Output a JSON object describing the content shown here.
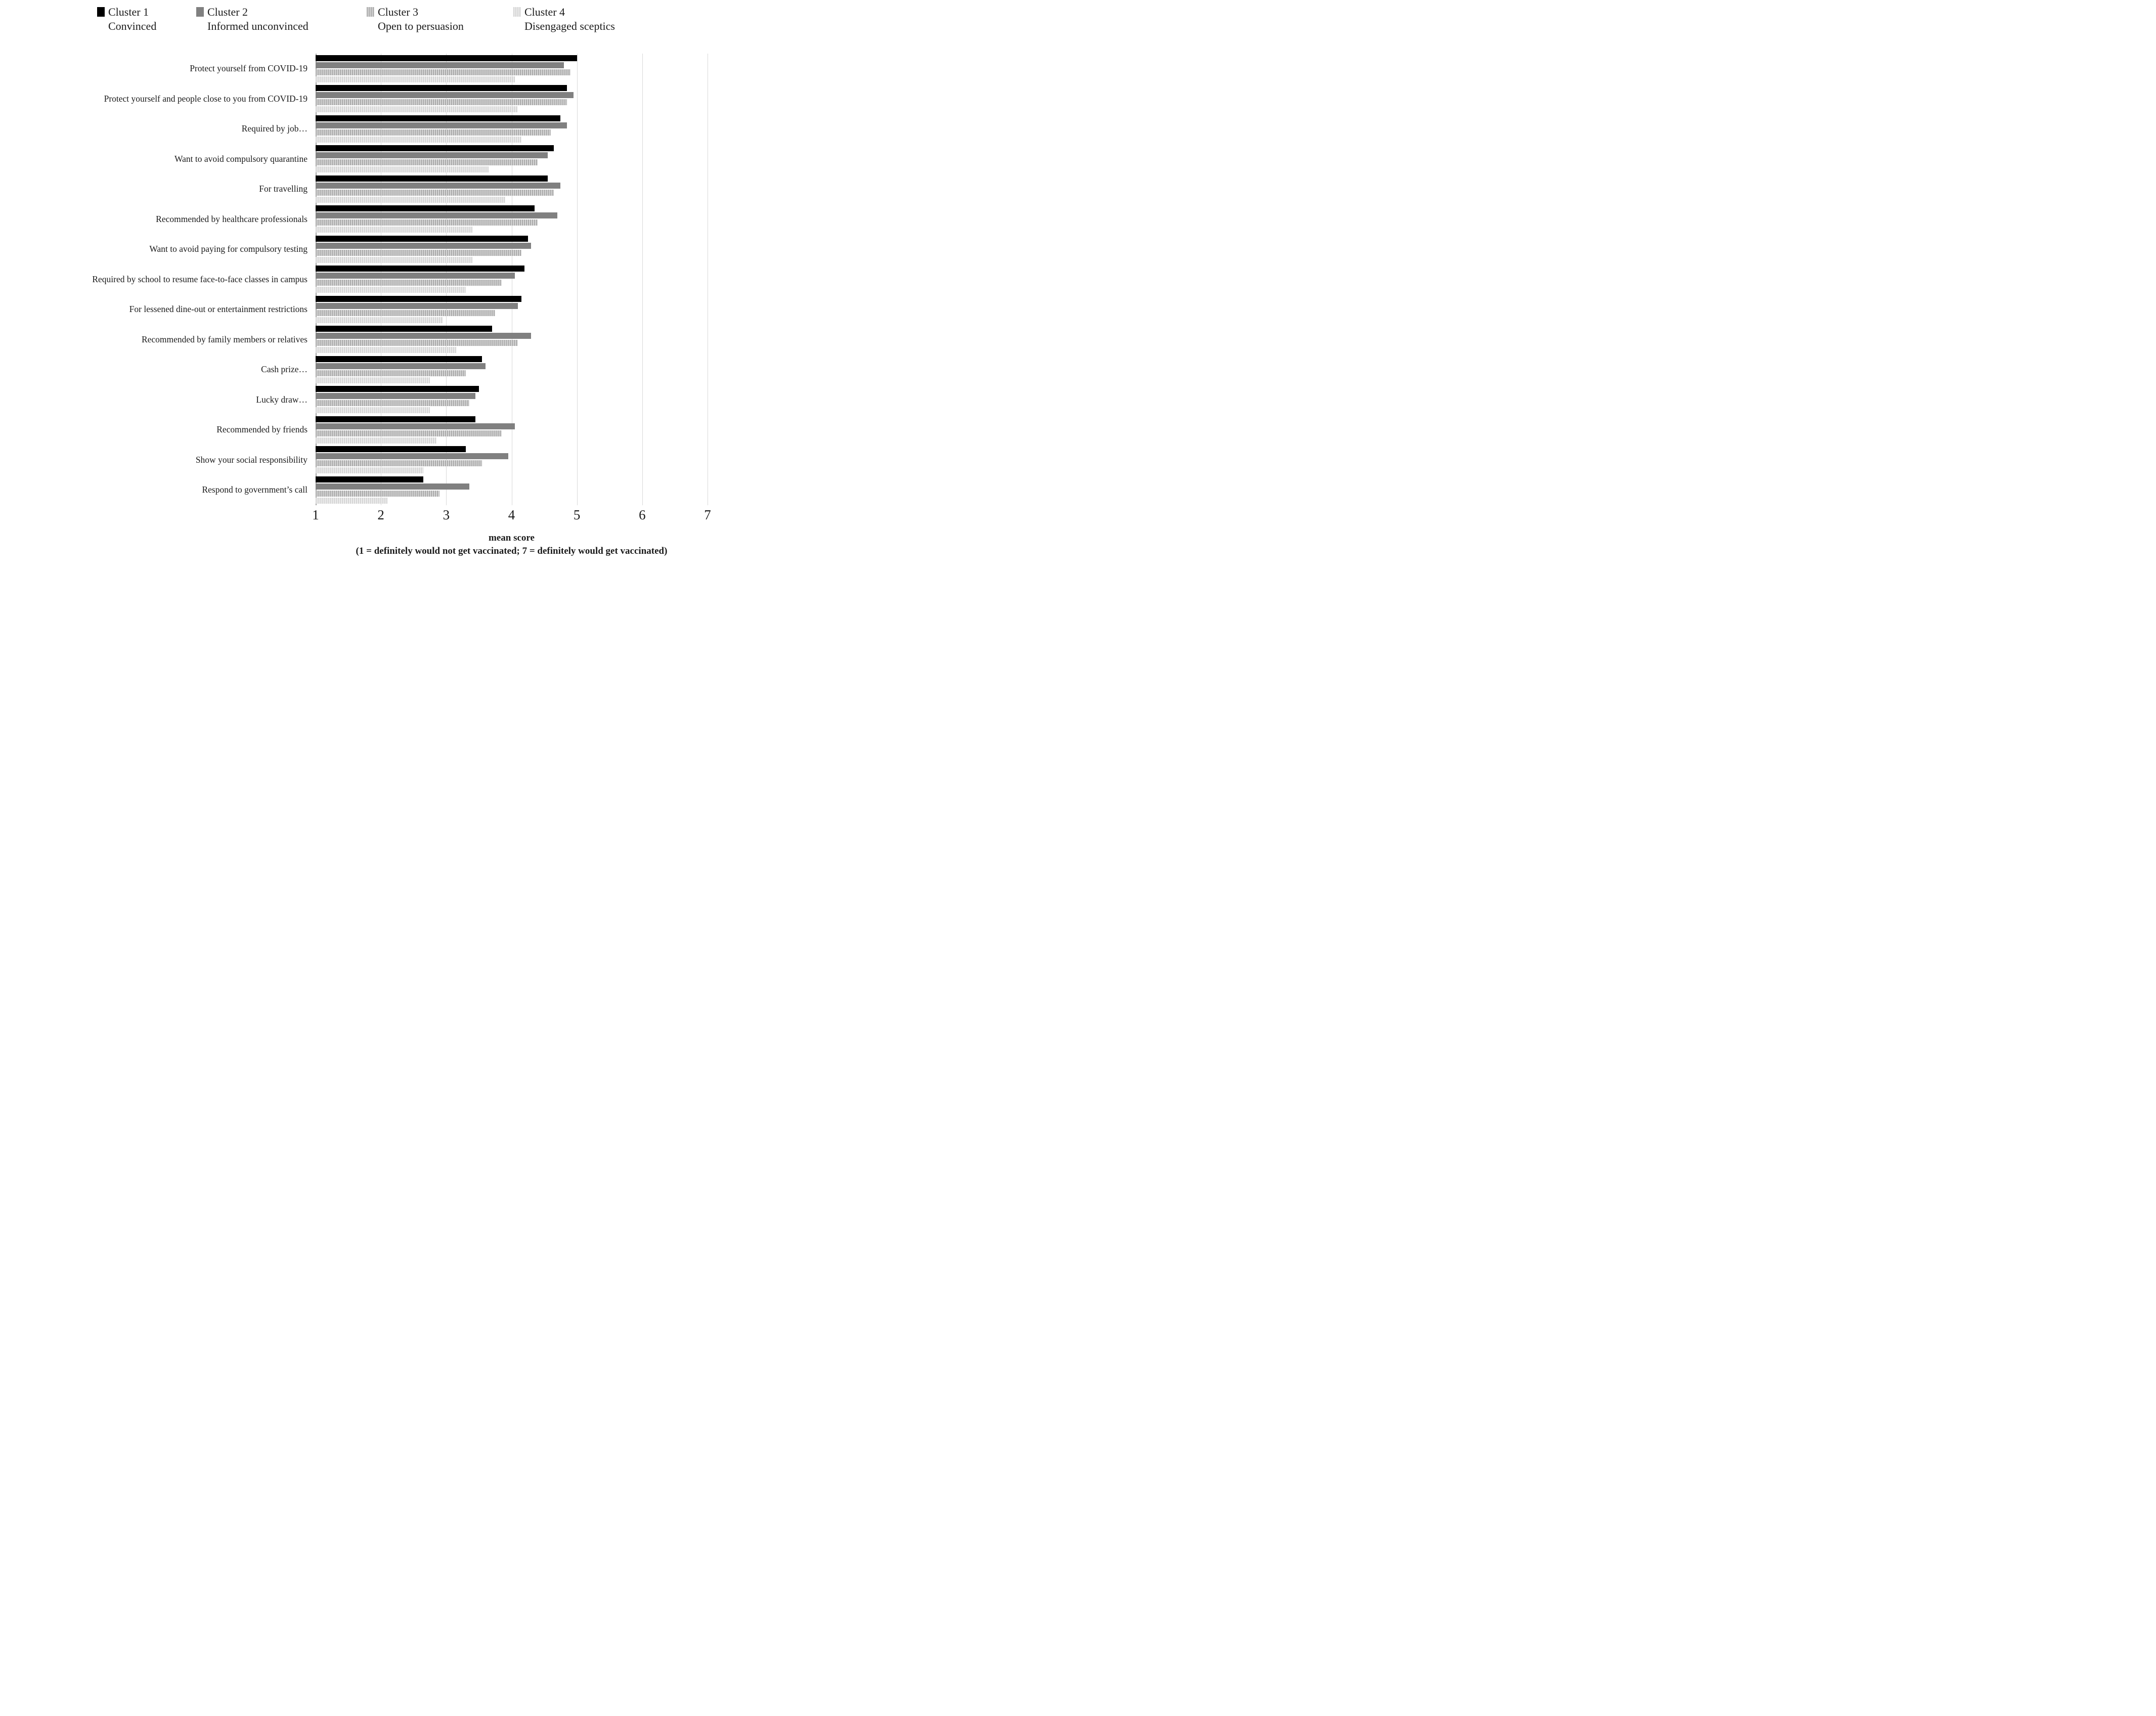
{
  "legend": [
    {
      "label": "Cluster 1",
      "subtitle": "Convinced",
      "color": "#000000",
      "pattern": "solid"
    },
    {
      "label": "Cluster 2",
      "subtitle": "Informed unconvinced",
      "color": "#808080",
      "pattern": "solid"
    },
    {
      "label": "Cluster 3",
      "subtitle": "Open to persuasion",
      "color": "#aaaaaa",
      "pattern": "vertical-stripes"
    },
    {
      "label": "Cluster 4",
      "subtitle": "Disengaged sceptics",
      "color": "#d4d4d4",
      "pattern": "vertical-stripes-light"
    }
  ],
  "chart_data": {
    "type": "bar",
    "orientation": "horizontal",
    "title": "",
    "xlabel": "mean score",
    "xlabel_note": "(1 = definitely would not get vaccinated; 7 = definitely would get vaccinated)",
    "xlim": [
      1,
      7
    ],
    "x_ticks": [
      1,
      2,
      3,
      4,
      5,
      6,
      7
    ],
    "grid": "vertical",
    "legend_position": "top",
    "categories": [
      "Protect yourself from COVID-19",
      "Protect yourself and people close to you from COVID-19",
      "Required by job…",
      "Want to avoid compulsory quarantine",
      "For travelling",
      "Recommended by healthcare professionals",
      "Want to avoid paying for compulsory testing",
      "Required by school to resume face-to-face classes in campus",
      "For lessened dine-out or entertainment restrictions",
      "Recommended by family members or relatives",
      "Cash prize…",
      "Lucky draw…",
      "Recommended by friends",
      "Show your social responsibility",
      "Respond to government’s call"
    ],
    "series": [
      {
        "name": "Cluster 1 Convinced",
        "values": [
          5.0,
          4.85,
          4.75,
          4.65,
          4.55,
          4.35,
          4.25,
          4.2,
          4.15,
          3.7,
          3.55,
          3.5,
          3.45,
          3.3,
          2.65
        ]
      },
      {
        "name": "Cluster 2 Informed unconvinced",
        "values": [
          4.8,
          4.95,
          4.85,
          4.55,
          4.75,
          4.7,
          4.3,
          4.05,
          4.1,
          4.3,
          3.6,
          3.45,
          4.05,
          3.95,
          3.35
        ]
      },
      {
        "name": "Cluster 3 Open to persuasion",
        "values": [
          4.9,
          4.85,
          4.6,
          4.4,
          4.65,
          4.4,
          4.15,
          3.85,
          3.75,
          4.1,
          3.3,
          3.35,
          3.85,
          3.55,
          2.9
        ]
      },
      {
        "name": "Cluster 4 Disengaged sceptics",
        "values": [
          4.05,
          4.1,
          4.15,
          3.65,
          3.9,
          3.4,
          3.4,
          3.3,
          2.95,
          3.15,
          2.75,
          2.75,
          2.85,
          2.65,
          2.1
        ]
      }
    ]
  }
}
